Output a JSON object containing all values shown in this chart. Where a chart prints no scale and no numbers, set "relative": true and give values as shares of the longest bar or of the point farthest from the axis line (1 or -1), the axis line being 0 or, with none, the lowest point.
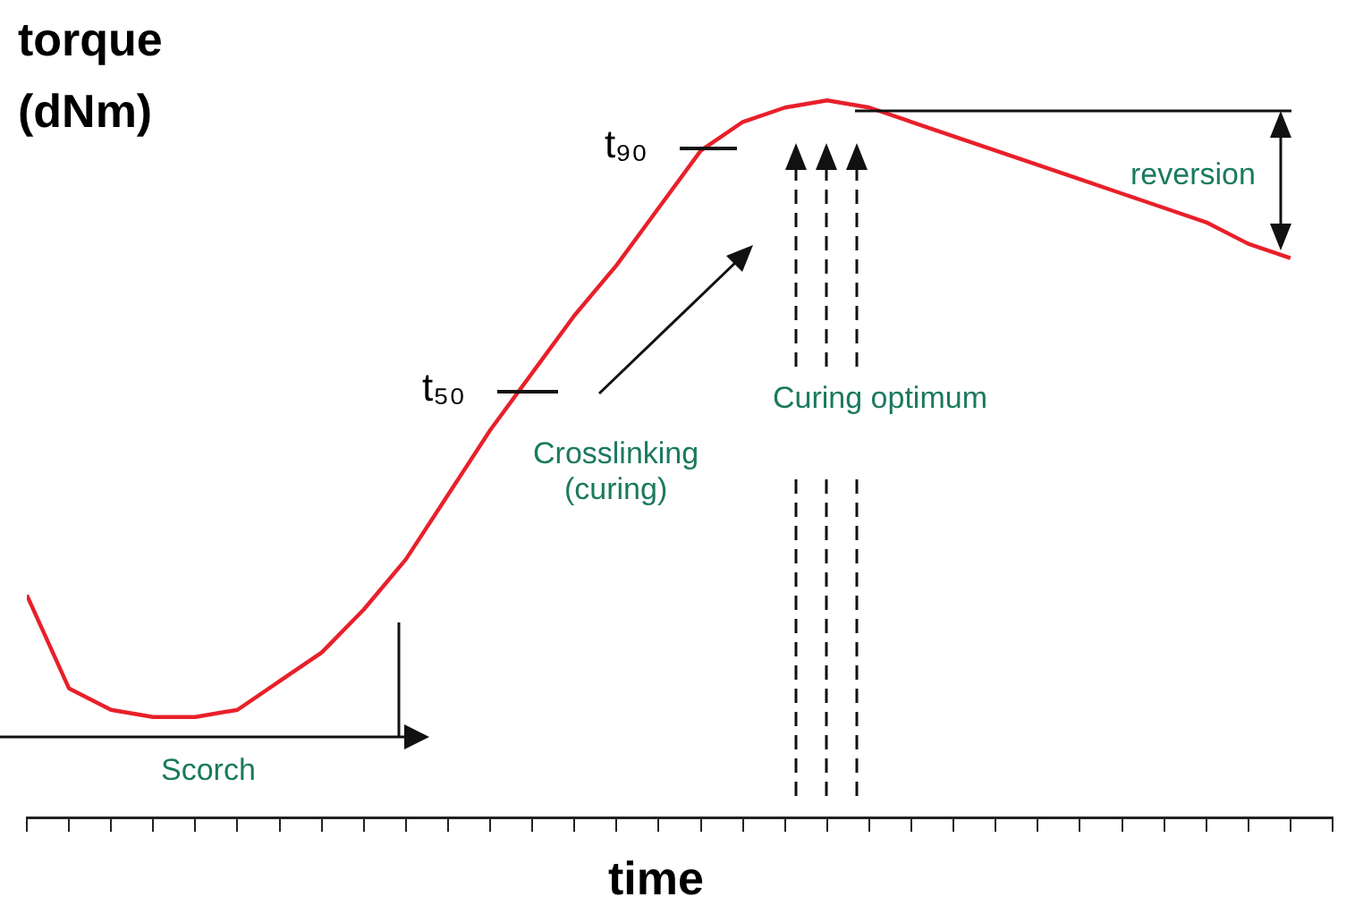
{
  "chart_data": {
    "type": "line",
    "relative": true,
    "ylabel": "torque\n(dNm)",
    "xlabel": "time",
    "categories": [
      null,
      null,
      null,
      null,
      null,
      null,
      null,
      null,
      null,
      null,
      null,
      null,
      null,
      null,
      null,
      null,
      null,
      null,
      null,
      null,
      null,
      null,
      null,
      null,
      null,
      null,
      null,
      null,
      null,
      null,
      null
    ],
    "series": [
      {
        "color": "#e8202a",
        "values": [
          0.31,
          0.18,
          0.15,
          0.14,
          0.14,
          0.15,
          0.19,
          0.23,
          0.29,
          0.36,
          0.45,
          0.54,
          0.62,
          0.7,
          0.77,
          0.85,
          0.93,
          0.97,
          0.99,
          1,
          0.99,
          0.97,
          0.95,
          0.93,
          0.91,
          0.89,
          0.87,
          0.85,
          0.83,
          0.8,
          0.78
        ]
      }
    ],
    "annotations": [
      "t₅₀",
      "t₉₀",
      "Crosslinking\n(curing)",
      "Curing optimum",
      "reversion",
      "Scorch"
    ],
    "marker": "none",
    "line_style": "solid",
    "grid": false,
    "legend": false,
    "tick_labels": false
  }
}
